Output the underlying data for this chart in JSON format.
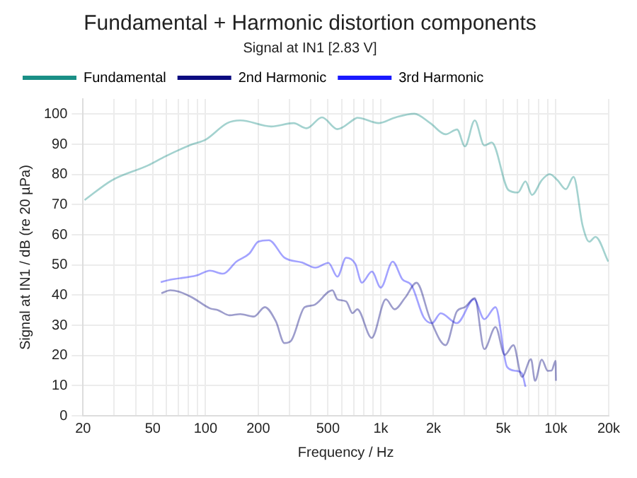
{
  "chart_data": {
    "type": "line",
    "title": "Fundamental + Harmonic distortion components",
    "subtitle": "Signal at IN1 [2.83 V]",
    "xlabel": "Frequency / Hz",
    "ylabel": "Signal at IN1 / dB (re 20 µPa)",
    "log": "x",
    "grid": true,
    "legend": "top",
    "marker": "none",
    "line_style": "solid",
    "xlim": [
      20,
      20000
    ],
    "ylim": [
      0,
      105
    ],
    "xticks": [
      20,
      {
        "value": 30,
        "label": null
      },
      {
        "value": 40,
        "label": null
      },
      50,
      {
        "value": 60,
        "label": null
      },
      {
        "value": 70,
        "label": null
      },
      {
        "value": 80,
        "label": null
      },
      {
        "value": 90,
        "label": null
      },
      100,
      200,
      {
        "value": 300,
        "label": null
      },
      {
        "value": 400,
        "label": null
      },
      500,
      {
        "value": 600,
        "label": null
      },
      {
        "value": 700,
        "label": null
      },
      {
        "value": 800,
        "label": null
      },
      {
        "value": 900,
        "label": null
      },
      {
        "value": 1000,
        "label": "1k"
      },
      {
        "value": 2000,
        "label": "2k"
      },
      {
        "value": 3000,
        "label": null
      },
      {
        "value": 4000,
        "label": null
      },
      {
        "value": 5000,
        "label": "5k"
      },
      {
        "value": 6000,
        "label": null
      },
      {
        "value": 7000,
        "label": null
      },
      {
        "value": 8000,
        "label": null
      },
      {
        "value": 9000,
        "label": null
      },
      {
        "value": 10000,
        "label": "10k"
      },
      {
        "value": 20000,
        "label": "20k"
      }
    ],
    "yticks": [
      0,
      10,
      20,
      30,
      40,
      50,
      60,
      70,
      80,
      90,
      100
    ],
    "series": [
      {
        "name": "Fundamental",
        "color": "#1a8f86",
        "x": [
          20.4,
          29.3,
          47,
          59,
          84,
          100,
          133,
          158,
          237,
          318,
          378,
          462,
          566,
          715,
          735,
          976,
          1200,
          1554,
          1916,
          2345,
          2727,
          3025,
          3440,
          3900,
          4300,
          5360,
          6060,
          6700,
          7300,
          8300,
          9200,
          10200,
          11400,
          12600,
          14200,
          15500,
          16800,
          19900
        ],
        "values": [
          71.5,
          78.1,
          83,
          86,
          90,
          91.5,
          97,
          97.9,
          95.9,
          97,
          95.3,
          98.9,
          95,
          98.5,
          98.8,
          97,
          98.8,
          100.1,
          97,
          93.3,
          94.9,
          89.3,
          97.9,
          89.6,
          90.6,
          74.8,
          74,
          77.7,
          73.2,
          78.1,
          80.1,
          78.1,
          75.1,
          79.2,
          63,
          57.7,
          59.3,
          51.1
        ]
      },
      {
        "name": "2nd Harmonic",
        "color": "#0b0b80",
        "x": [
          56,
          63,
          70,
          84,
          106,
          118,
          137,
          158,
          189,
          218,
          252,
          282,
          308,
          368,
          411,
          530,
          566,
          635,
          690,
          735,
          888,
          1070,
          1200,
          1380,
          1600,
          1916,
          2345,
          2720,
          3020,
          3440,
          3900,
          4520,
          5100,
          5720,
          6400,
          7200,
          7600,
          8300,
          8980,
          9450,
          9950,
          10000
        ],
        "values": [
          40.6,
          41.6,
          41.2,
          39.2,
          35.6,
          35,
          33.3,
          33.7,
          32.9,
          36,
          31.3,
          24.1,
          24.9,
          36,
          36.6,
          41.6,
          38.6,
          37.9,
          34,
          35.3,
          25.8,
          38.6,
          35.3,
          39.2,
          44.1,
          32,
          23.4,
          34.6,
          36,
          39,
          22.1,
          29.4,
          20.2,
          23.4,
          12.9,
          18.8,
          11.6,
          18.6,
          14.9,
          15,
          18.2,
          11.6
        ]
      },
      {
        "name": "3rd Harmonic",
        "color": "#1a1aff",
        "x": [
          55.5,
          63,
          89,
          106,
          126,
          150,
          178,
          200,
          230,
          282,
          356,
          423,
          503,
          566,
          634,
          715,
          780,
          890,
          1000,
          1170,
          1330,
          1500,
          1760,
          1960,
          2200,
          2720,
          3410,
          3900,
          4520,
          5260,
          5900,
          6400,
          6700
        ],
        "values": [
          44.3,
          45.1,
          46.5,
          48.1,
          47.1,
          51.1,
          53.8,
          57.7,
          58.2,
          52.4,
          50.8,
          49.1,
          50.7,
          46.1,
          52.4,
          50.4,
          44.1,
          47.8,
          42.5,
          51.1,
          45.2,
          43.2,
          32.6,
          30.7,
          34,
          30.7,
          38.6,
          32,
          36,
          16.2,
          14.9,
          14,
          9.6
        ]
      }
    ]
  }
}
